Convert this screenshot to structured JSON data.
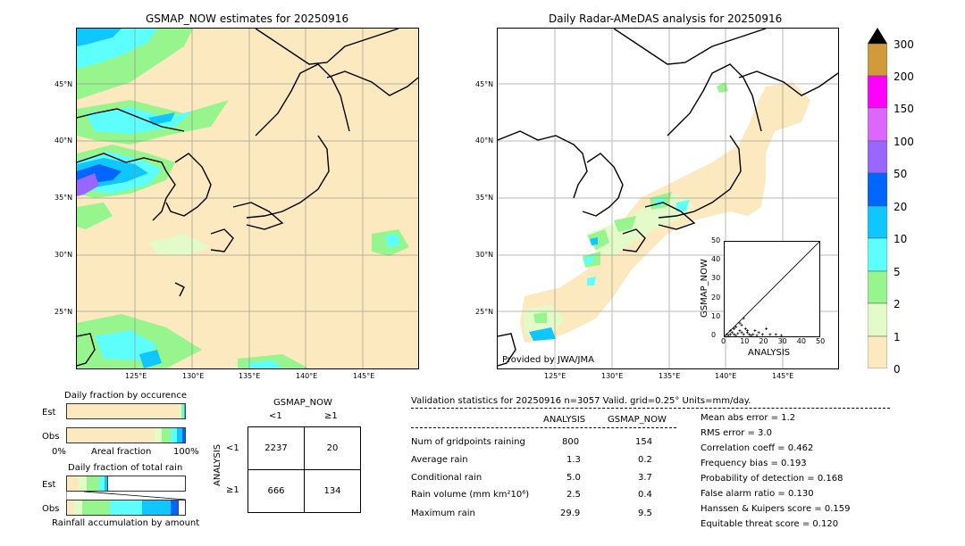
{
  "left_map": {
    "title": "GSMAP_NOW estimates for 20250916",
    "lat_labels": [
      "45°N",
      "40°N",
      "35°N",
      "30°N",
      "25°N"
    ],
    "lon_labels": [
      "125°E",
      "130°E",
      "135°E",
      "140°E",
      "145°E"
    ]
  },
  "right_map": {
    "title": "Daily Radar-AMeDAS analysis for 20250916",
    "lat_labels": [
      "45°N",
      "40°N",
      "35°N",
      "30°N",
      "25°N"
    ],
    "lon_labels": [
      "125°E",
      "130°E",
      "135°E",
      "140°E",
      "145°E"
    ],
    "credit": "Provided by JWA/JMA"
  },
  "colorbar": {
    "levels": [
      "0",
      "1",
      "2",
      "5",
      "10",
      "20",
      "50",
      "100",
      "150",
      "200",
      "300"
    ],
    "colors": [
      "#fde9bf",
      "#e3fbc9",
      "#96f58c",
      "#5cfffb",
      "#0fc6ff",
      "#0066ff",
      "#9966ff",
      "#dd66ff",
      "#ff00ff",
      "#d19a3a",
      "#000000"
    ]
  },
  "scatter_inset": {
    "xlabel": "ANALYSIS",
    "ylabel": "GSMAP_NOW",
    "ticks": [
      "0",
      "10",
      "20",
      "30",
      "40",
      "50"
    ]
  },
  "fraction_occurrence": {
    "title": "Daily fraction by occurence",
    "rows": [
      "Est",
      "Obs"
    ],
    "x_left": "0%",
    "x_mid": "Areal fraction",
    "x_right": "100%"
  },
  "fraction_rain": {
    "title": "Daily fraction of total rain",
    "rows": [
      "Est",
      "Obs"
    ],
    "x_label": "Rainfall accumulation by amount"
  },
  "contingency": {
    "title": "GSMAP_NOW",
    "col_headers": [
      "<1",
      "≥1"
    ],
    "row_title": "ANALYSIS",
    "row_headers": [
      "<1",
      "≥1"
    ],
    "cells": [
      [
        "2237",
        "20"
      ],
      [
        "666",
        "134"
      ]
    ]
  },
  "validation": {
    "header": "Validation statistics for 20250916  n=3057 Valid. grid=0.25° Units=mm/day.",
    "col_analysis": "ANALYSIS",
    "col_gsmap": "GSMAP_NOW",
    "rows": [
      {
        "label": "Num of gridpoints raining",
        "analysis": "800",
        "gsmap": "154"
      },
      {
        "label": "Average rain",
        "analysis": "1.3",
        "gsmap": "0.2"
      },
      {
        "label": "Conditional rain",
        "analysis": "5.0",
        "gsmap": "3.7"
      },
      {
        "label": "Rain volume (mm km²10⁶)",
        "analysis": "2.5",
        "gsmap": "0.4"
      },
      {
        "label": "Maximum rain",
        "analysis": "29.9",
        "gsmap": "9.5"
      }
    ],
    "scores": [
      "Mean abs error =    1.2",
      "RMS error =    3.0",
      "Correlation coeff =  0.462",
      "Frequency bias =  0.193",
      "Probability of detection =  0.168",
      "False alarm ratio =  0.130",
      "Hanssen & Kuipers score =  0.159",
      "Equitable threat score =  0.120"
    ]
  },
  "chart_data": [
    {
      "type": "scatter",
      "title": "",
      "xlabel": "ANALYSIS",
      "ylabel": "GSMAP_NOW",
      "xlim": [
        0,
        50
      ],
      "ylim": [
        0,
        50
      ],
      "points": [
        [
          1,
          1
        ],
        [
          2,
          0.5
        ],
        [
          3,
          1
        ],
        [
          4,
          2
        ],
        [
          5,
          1
        ],
        [
          6,
          0.5
        ],
        [
          7,
          1.5
        ],
        [
          8,
          3
        ],
        [
          9,
          2
        ],
        [
          10,
          1
        ],
        [
          11,
          4
        ],
        [
          12,
          2
        ],
        [
          13,
          1
        ],
        [
          14,
          0.5
        ],
        [
          15,
          1
        ],
        [
          16,
          3
        ],
        [
          17,
          0.5
        ],
        [
          18,
          2
        ],
        [
          20,
          1
        ],
        [
          22,
          4
        ],
        [
          24,
          1
        ],
        [
          27,
          1
        ],
        [
          29.9,
          0.5
        ],
        [
          6,
          5
        ],
        [
          9,
          6
        ],
        [
          12,
          3
        ],
        [
          3,
          3
        ],
        [
          5,
          4
        ],
        [
          8,
          7
        ],
        [
          10,
          9.5
        ]
      ],
      "diagonal": true
    },
    {
      "type": "bar",
      "title": "Daily fraction by occurence",
      "categories": [
        "Est",
        "Obs"
      ],
      "series": [
        {
          "values": [
            0.95,
            0.74
          ]
        },
        {
          "values": [
            0.02,
            0.06
          ]
        },
        {
          "values": [
            0.015,
            0.08
          ]
        },
        {
          "values": [
            0.01,
            0.05
          ]
        },
        {
          "values": [
            0.005,
            0.05
          ]
        },
        {
          "values": [
            0,
            0.02
          ]
        }
      ]
    },
    {
      "type": "bar",
      "title": "Daily fraction of total rain",
      "categories": [
        "Est",
        "Obs"
      ],
      "series": [
        {
          "values": [
            0.1,
            0.06
          ]
        },
        {
          "values": [
            0.07,
            0.07
          ]
        },
        {
          "values": [
            0.1,
            0.23
          ]
        },
        {
          "values": [
            0.05,
            0.28
          ]
        },
        {
          "values": [
            0.02,
            0.24
          ]
        },
        {
          "values": [
            0,
            0.06
          ]
        }
      ]
    }
  ]
}
